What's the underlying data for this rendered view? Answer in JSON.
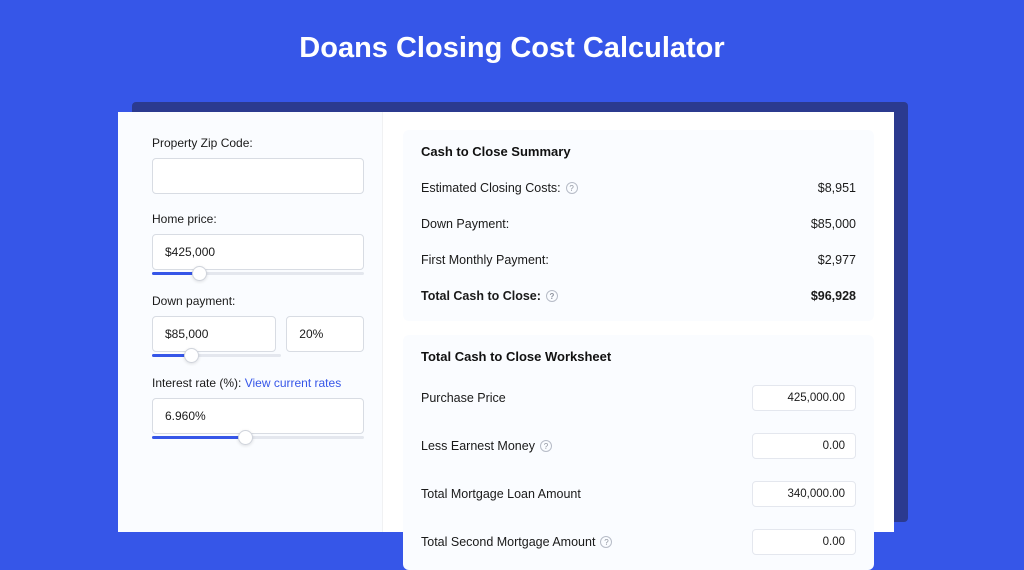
{
  "title": "Doans Closing Cost Calculator",
  "colors": {
    "page_bg": "#3656e8",
    "shadow": "#2b3a8f",
    "card_bg": "#ffffff",
    "panel_bg": "#fafcff",
    "border": "#d8dce3",
    "slider_track": "#e4e7ee",
    "slider_fill": "#3656e8",
    "link": "#3656e8",
    "text": "#1a1a1a"
  },
  "inputs": {
    "zip": {
      "label": "Property Zip Code:",
      "value": ""
    },
    "home_price": {
      "label": "Home price:",
      "value": "$425,000",
      "slider_pct": 22
    },
    "down_payment": {
      "label": "Down payment:",
      "value": "$85,000",
      "pct_value": "20%",
      "slider_pct": 30
    },
    "interest_rate": {
      "label": "Interest rate (%): ",
      "link_text": "View current rates",
      "value": "6.960%",
      "slider_pct": 44
    }
  },
  "summary": {
    "title": "Cash to Close Summary",
    "rows": [
      {
        "label": "Estimated Closing Costs:",
        "help": true,
        "value": "$8,951",
        "bold": false
      },
      {
        "label": "Down Payment:",
        "help": false,
        "value": "$85,000",
        "bold": false
      },
      {
        "label": "First Monthly Payment:",
        "help": false,
        "value": "$2,977",
        "bold": false
      },
      {
        "label": "Total Cash to Close:",
        "help": true,
        "value": "$96,928",
        "bold": true
      }
    ]
  },
  "worksheet": {
    "title": "Total Cash to Close Worksheet",
    "rows": [
      {
        "label": "Purchase Price",
        "help": false,
        "value": "425,000.00"
      },
      {
        "label": "Less Earnest Money",
        "help": true,
        "value": "0.00"
      },
      {
        "label": "Total Mortgage Loan Amount",
        "help": false,
        "value": "340,000.00"
      },
      {
        "label": "Total Second Mortgage Amount",
        "help": true,
        "value": "0.00"
      }
    ]
  }
}
